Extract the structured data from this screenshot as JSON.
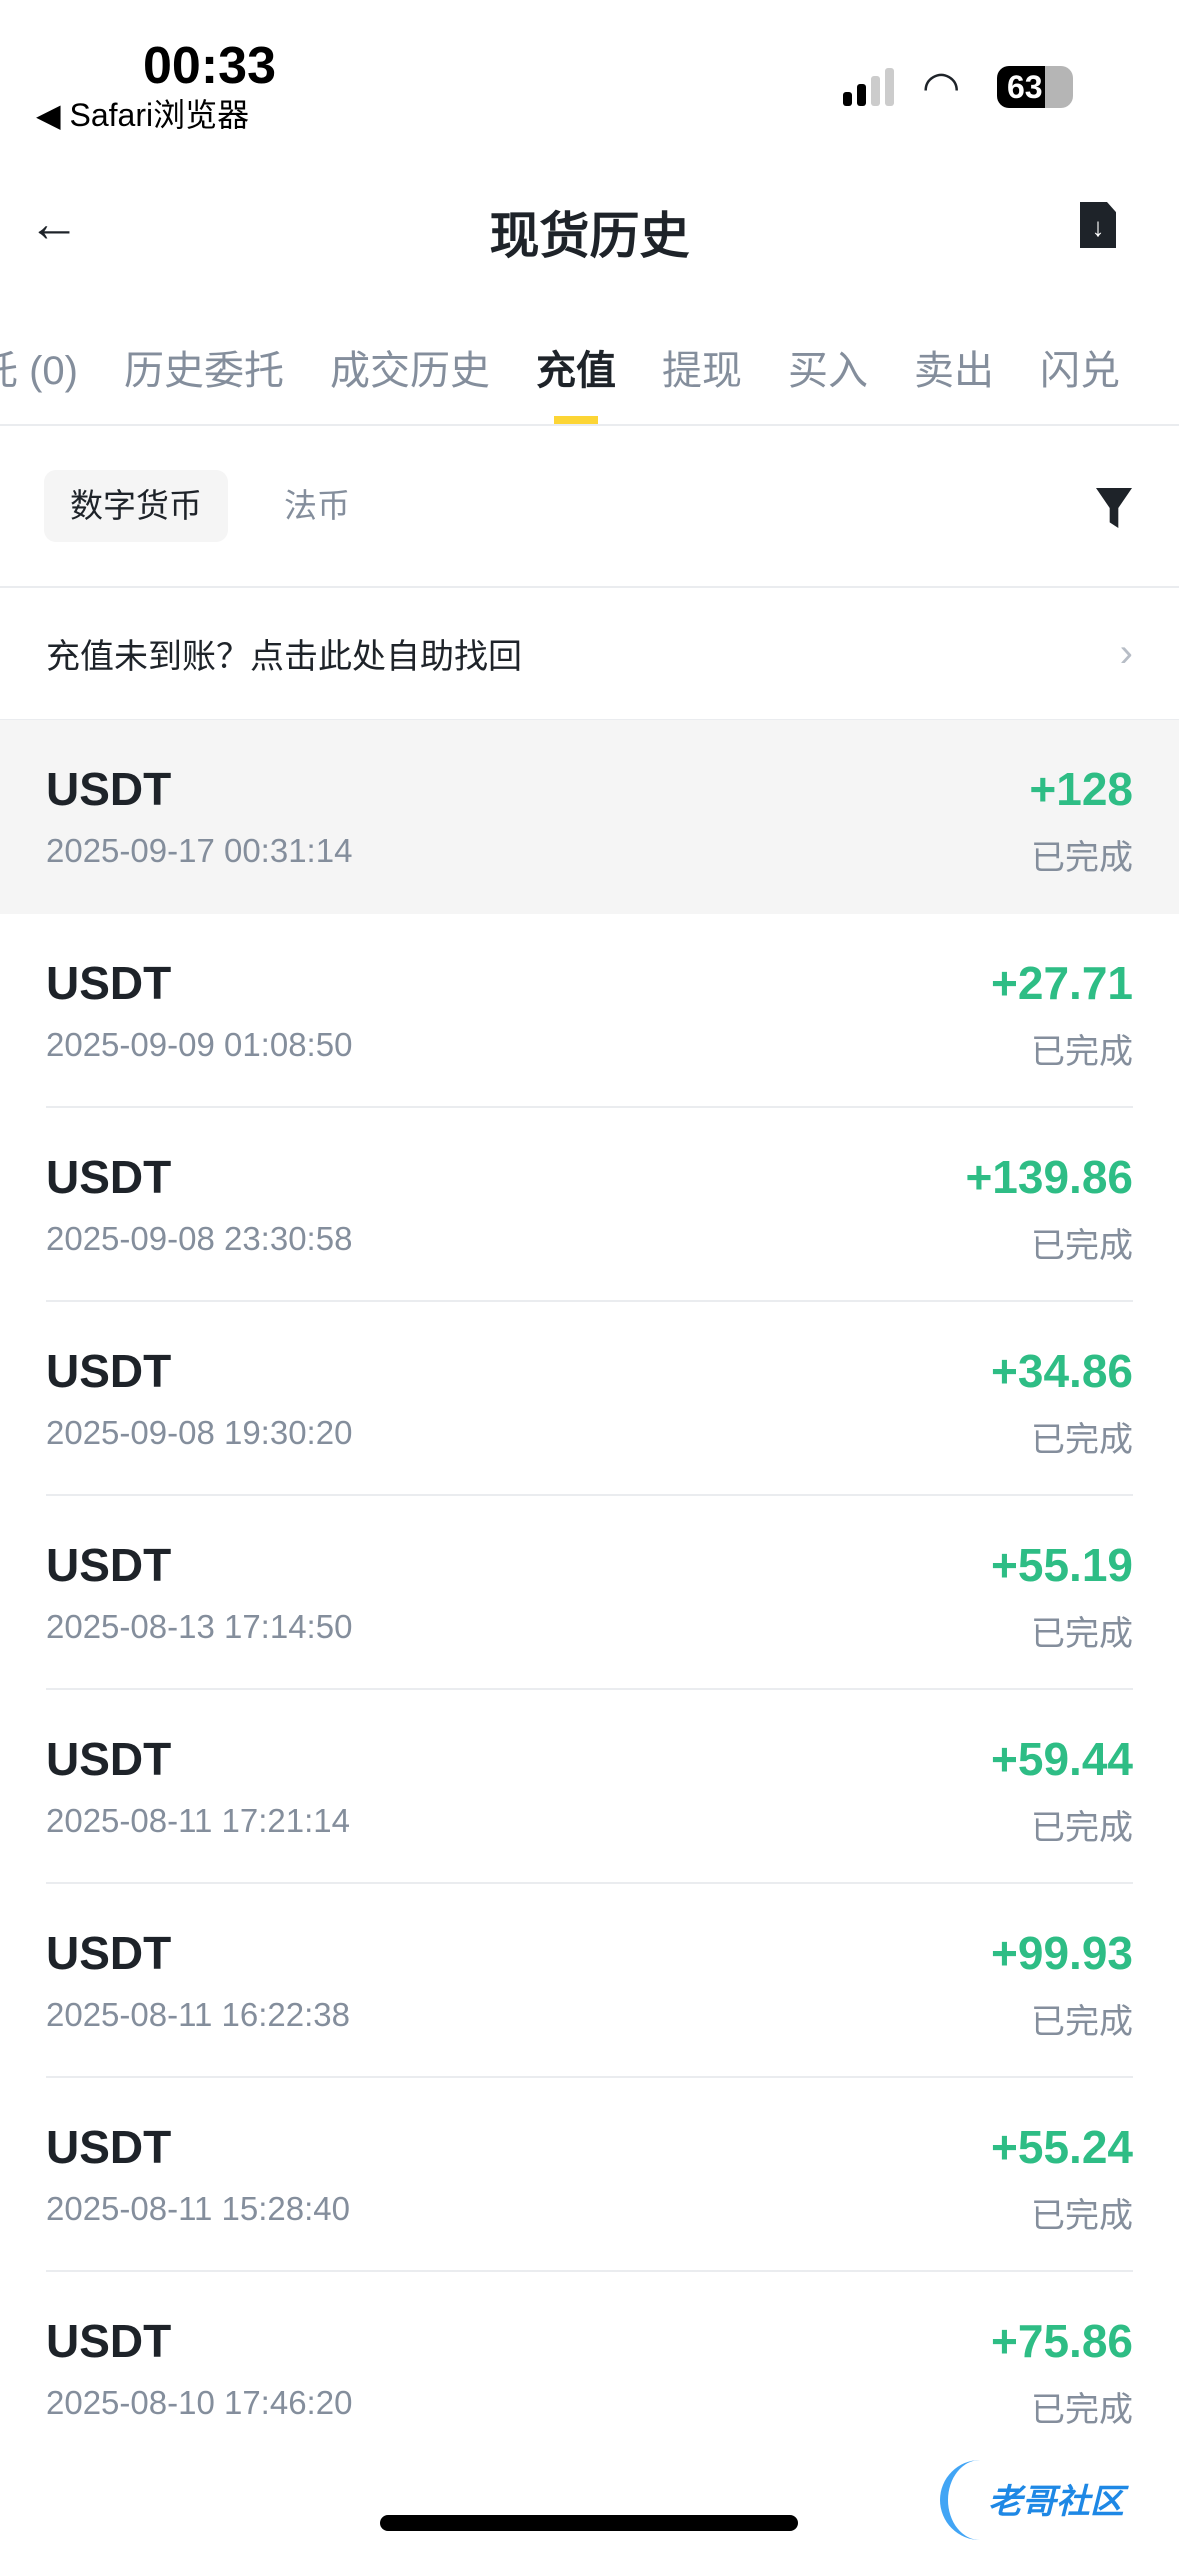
{
  "status_bar": {
    "time": "00:33",
    "back_app": "◀ Safari浏览器",
    "battery": "63"
  },
  "header": {
    "title": "现货历史",
    "back_icon": "arrow-left-icon",
    "download_icon": "download-file-icon"
  },
  "tabs": [
    {
      "label": "托 (0)"
    },
    {
      "label": "历史委托"
    },
    {
      "label": "成交历史"
    },
    {
      "label": "充值",
      "active": true
    },
    {
      "label": "提现"
    },
    {
      "label": "买入"
    },
    {
      "label": "卖出"
    },
    {
      "label": "闪兑"
    }
  ],
  "chips": [
    {
      "label": "数字货币",
      "active": true
    },
    {
      "label": "法币"
    }
  ],
  "notice": {
    "text": "充值未到账？点击此处自助找回"
  },
  "records": [
    {
      "coin": "USDT",
      "date": "2025-09-17 00:31:14",
      "amount": "+128",
      "status": "已完成"
    },
    {
      "coin": "USDT",
      "date": "2025-09-09 01:08:50",
      "amount": "+27.71",
      "status": "已完成"
    },
    {
      "coin": "USDT",
      "date": "2025-09-08 23:30:58",
      "amount": "+139.86",
      "status": "已完成"
    },
    {
      "coin": "USDT",
      "date": "2025-09-08 19:30:20",
      "amount": "+34.86",
      "status": "已完成"
    },
    {
      "coin": "USDT",
      "date": "2025-08-13 17:14:50",
      "amount": "+55.19",
      "status": "已完成"
    },
    {
      "coin": "USDT",
      "date": "2025-08-11 17:21:14",
      "amount": "+59.44",
      "status": "已完成"
    },
    {
      "coin": "USDT",
      "date": "2025-08-11 16:22:38",
      "amount": "+99.93",
      "status": "已完成"
    },
    {
      "coin": "USDT",
      "date": "2025-08-11 15:28:40",
      "amount": "+55.24",
      "status": "已完成"
    },
    {
      "coin": "USDT",
      "date": "2025-08-10 17:46:20",
      "amount": "+75.86",
      "status": "已完成"
    }
  ],
  "watermark": {
    "text": "老哥社区"
  },
  "colors": {
    "positive": "#2ebd85",
    "accent": "#fcd535"
  }
}
